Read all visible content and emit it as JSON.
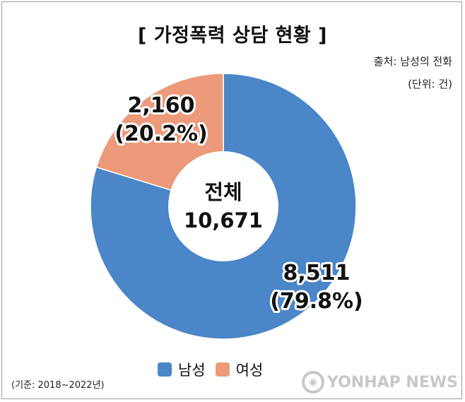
{
  "chart_data": {
    "type": "pie",
    "title": "[ 가정폭력 상담 현황 ]",
    "source": "출처: 남성의 전화",
    "unit": "(단위: 건)",
    "center_label": "전체",
    "center_value": "10,671",
    "total": 10671,
    "slices": [
      {
        "name": "남성",
        "value": 8511,
        "value_label": "8,511",
        "percent_label": "(79.8%)",
        "color": "#4a86c8"
      },
      {
        "name": "여성",
        "value": 2160,
        "value_label": "2,160",
        "percent_label": "(20.2%)",
        "color": "#ec9a7a"
      }
    ],
    "legend_placement": "bottom",
    "footnote": "(기준: 2018~2022년)"
  },
  "watermark": {
    "text": "YONHAP NEWS"
  }
}
